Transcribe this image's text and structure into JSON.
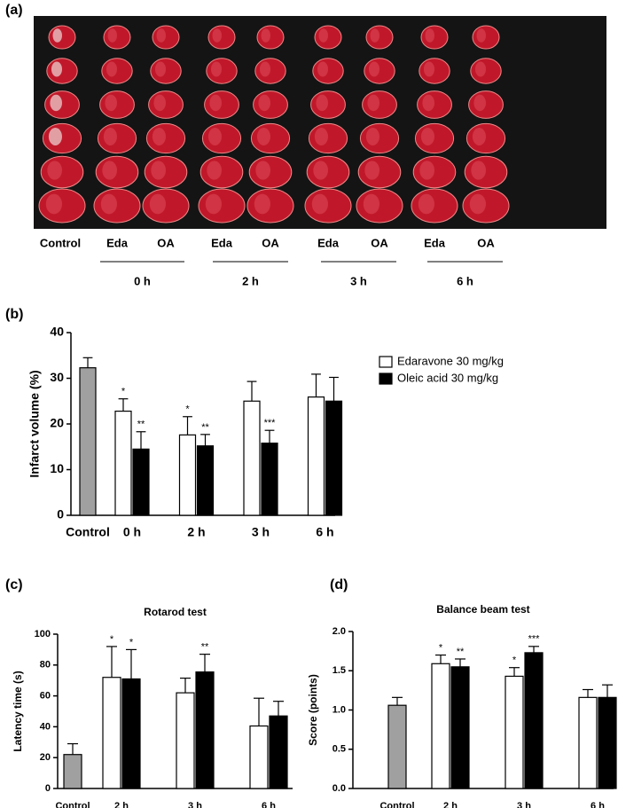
{
  "panel_a": {
    "label": "(a)",
    "lanes": [
      "Control",
      "Eda",
      "OA",
      "Eda",
      "OA",
      "Eda",
      "OA",
      "Eda",
      "OA"
    ],
    "groups": [
      "0 h",
      "2 h",
      "3 h",
      "6 h"
    ]
  },
  "chart_data": [
    {
      "type": "bar",
      "panel_label": "(b)",
      "ylabel": "Infarct volume (%)",
      "ylim": [
        0,
        40
      ],
      "yticks": [
        0,
        10,
        20,
        30,
        40
      ],
      "control": {
        "category": "Control",
        "value": 32.3,
        "error": 2.2,
        "color": "#a0a0a0"
      },
      "categories": [
        "0 h",
        "2 h",
        "3 h",
        "6 h"
      ],
      "legend": "upper right",
      "series": [
        {
          "name": "Edaravone 30 mg/kg",
          "color": "#ffffff",
          "values": [
            22.8,
            17.6,
            25,
            25.9
          ],
          "errors": [
            2.7,
            4,
            4.3,
            5
          ],
          "annotations": [
            "*",
            "*",
            null,
            null
          ]
        },
        {
          "name": "Oleic acid 30 mg/kg",
          "color": "#000000",
          "values": [
            14.5,
            15.2,
            15.8,
            25
          ],
          "errors": [
            3.8,
            2.5,
            2.8,
            5.2
          ],
          "annotations": [
            "**",
            "**",
            "***",
            null
          ]
        }
      ]
    },
    {
      "type": "bar",
      "panel_label": "(c)",
      "title": "Rotarod test",
      "ylabel": "Latency time (s)",
      "ylim": [
        0,
        100
      ],
      "yticks": [
        0,
        20,
        40,
        60,
        80,
        100
      ],
      "control": {
        "category": "Control",
        "value": 22,
        "error": 7,
        "color": "#a0a0a0"
      },
      "categories": [
        "2 h",
        "3 h",
        "6 h"
      ],
      "series": [
        {
          "color": "#ffffff",
          "values": [
            72,
            62,
            40.5
          ],
          "errors": [
            20,
            9.5,
            18
          ],
          "annotations": [
            "*",
            null,
            null
          ]
        },
        {
          "color": "#000000",
          "values": [
            71,
            75.5,
            47
          ],
          "errors": [
            19,
            11.5,
            9.5
          ],
          "annotations": [
            "*",
            "**",
            null
          ]
        }
      ]
    },
    {
      "type": "bar",
      "panel_label": "(d)",
      "title": "Balance beam test",
      "ylabel": "Score (points)",
      "ylim": [
        0,
        2
      ],
      "yticks": [
        {
          "value": 0,
          "label": "0.0"
        },
        {
          "value": 0.5,
          "label": "0.5"
        },
        {
          "value": 1,
          "label": "1.0"
        },
        {
          "value": 1.5,
          "label": "1.5"
        },
        {
          "value": 2,
          "label": "2.0"
        }
      ],
      "control": {
        "category": "Control",
        "value": 1.06,
        "error": 0.1,
        "color": "#a0a0a0"
      },
      "categories": [
        "2 h",
        "3 h",
        "6 h"
      ],
      "series": [
        {
          "color": "#ffffff",
          "values": [
            1.59,
            1.43,
            1.16
          ],
          "errors": [
            0.11,
            0.11,
            0.1
          ],
          "annotations": [
            "*",
            "*",
            null
          ]
        },
        {
          "color": "#000000",
          "values": [
            1.55,
            1.73,
            1.16
          ],
          "errors": [
            0.1,
            0.08,
            0.16
          ],
          "annotations": [
            "**",
            "***",
            null
          ]
        }
      ]
    }
  ]
}
